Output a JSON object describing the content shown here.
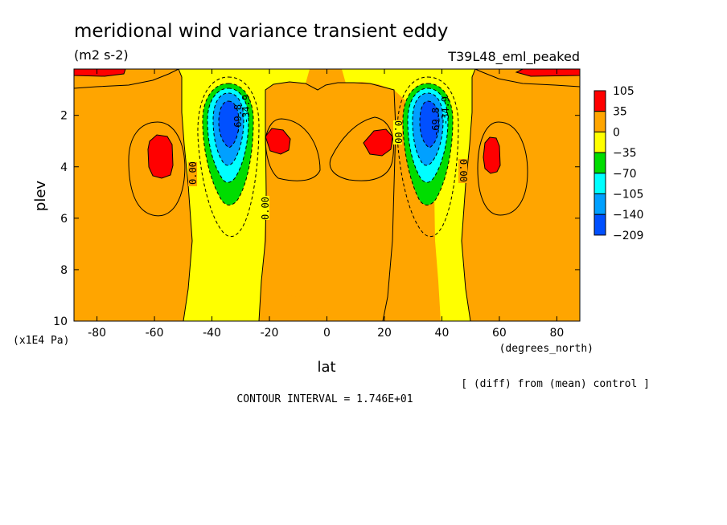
{
  "chart_data": {
    "type": "heatmap",
    "title": "meridional wind variance transient eddy",
    "units": "(m2 s-2)",
    "experiment": "T39L48_eml_peaked",
    "xlabel": "lat",
    "x_units": "(degrees_north)",
    "ylabel": "plev",
    "y_units": "(x1E4 Pa)",
    "xlim": [
      -88,
      88
    ],
    "ylim": [
      10,
      0.2
    ],
    "x_ticks": [
      -80,
      -60,
      -40,
      -20,
      0,
      20,
      40,
      60,
      80
    ],
    "y_ticks": [
      2,
      4,
      6,
      8,
      10
    ],
    "legend_placement": "right",
    "colorbar": {
      "labels": [
        "105",
        "35",
        "0",
        "−35",
        "−70",
        "−105",
        "−140",
        "−209"
      ],
      "colors": [
        "#ff0000",
        "#ffa500",
        "#ffff00",
        "#00dd00",
        "#00ffff",
        "#00a0ff",
        "#0050ff"
      ]
    },
    "contour_labels": [
      "0.00",
      "0.00",
      "0.00",
      "0.00",
      "-69.8",
      "-69.8",
      "-34.9",
      "-34.9"
    ],
    "contour_interval": "CONTOUR INTERVAL = 1.746E+01",
    "note": "[ (diff) from (mean) control ]",
    "features": [
      {
        "kind": "negative core",
        "lat": -35,
        "plev": 2.4,
        "min": -209
      },
      {
        "kind": "negative core",
        "lat": 35,
        "plev": 2.4,
        "min": -209
      },
      {
        "kind": "positive max",
        "lat": -58,
        "plev": 3.7,
        "value": 105
      },
      {
        "kind": "positive max",
        "lat": 58,
        "plev": 3.7,
        "value": 105
      },
      {
        "kind": "positive max",
        "lat": -17,
        "plev": 3.0,
        "value": 105
      },
      {
        "kind": "positive max",
        "lat": 17,
        "plev": 3.0,
        "value": 105
      }
    ]
  }
}
